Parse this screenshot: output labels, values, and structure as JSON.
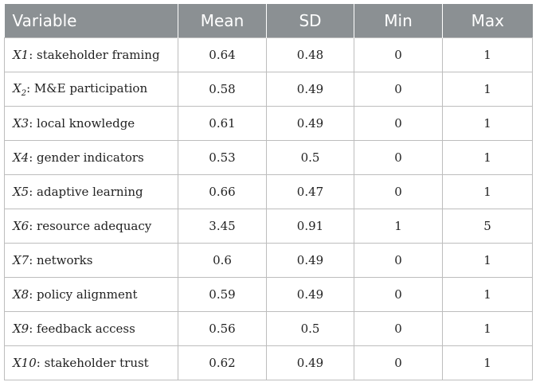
{
  "headers": [
    "Variable",
    "Mean",
    "SD",
    "Min",
    "Max"
  ],
  "rows": [
    {
      "sym": "X1",
      "sub": "",
      "label": ": stakeholder framing",
      "mean": "0.64",
      "sd": "0.48",
      "min": "0",
      "max": "1"
    },
    {
      "sym": "X",
      "sub": "2",
      "label": ": M&E participation",
      "mean": "0.58",
      "sd": "0.49",
      "min": "0",
      "max": "1"
    },
    {
      "sym": "X3",
      "sub": "",
      "label": ": local knowledge",
      "mean": "0.61",
      "sd": "0.49",
      "min": "0",
      "max": "1"
    },
    {
      "sym": "X4",
      "sub": "",
      "label": ": gender indicators",
      "mean": "0.53",
      "sd": "0.5",
      "min": "0",
      "max": "1"
    },
    {
      "sym": "X5",
      "sub": "",
      "label": ": adaptive learning",
      "mean": "0.66",
      "sd": "0.47",
      "min": "0",
      "max": "1"
    },
    {
      "sym": "X6",
      "sub": "",
      "label": ": resource adequacy",
      "mean": "3.45",
      "sd": "0.91",
      "min": "1",
      "max": "5"
    },
    {
      "sym": "X7",
      "sub": "",
      "label": ": networks",
      "mean": "0.6",
      "sd": "0.49",
      "min": "0",
      "max": "1"
    },
    {
      "sym": "X8",
      "sub": "",
      "label": ": policy alignment",
      "mean": "0.59",
      "sd": "0.49",
      "min": "0",
      "max": "1"
    },
    {
      "sym": "X9",
      "sub": "",
      "label": ": feedback access",
      "mean": "0.56",
      "sd": "0.5",
      "min": "0",
      "max": "1"
    },
    {
      "sym": "X10",
      "sub": "",
      "label": ": stakeholder trust",
      "mean": "0.62",
      "sd": "0.49",
      "min": "0",
      "max": "1"
    }
  ]
}
